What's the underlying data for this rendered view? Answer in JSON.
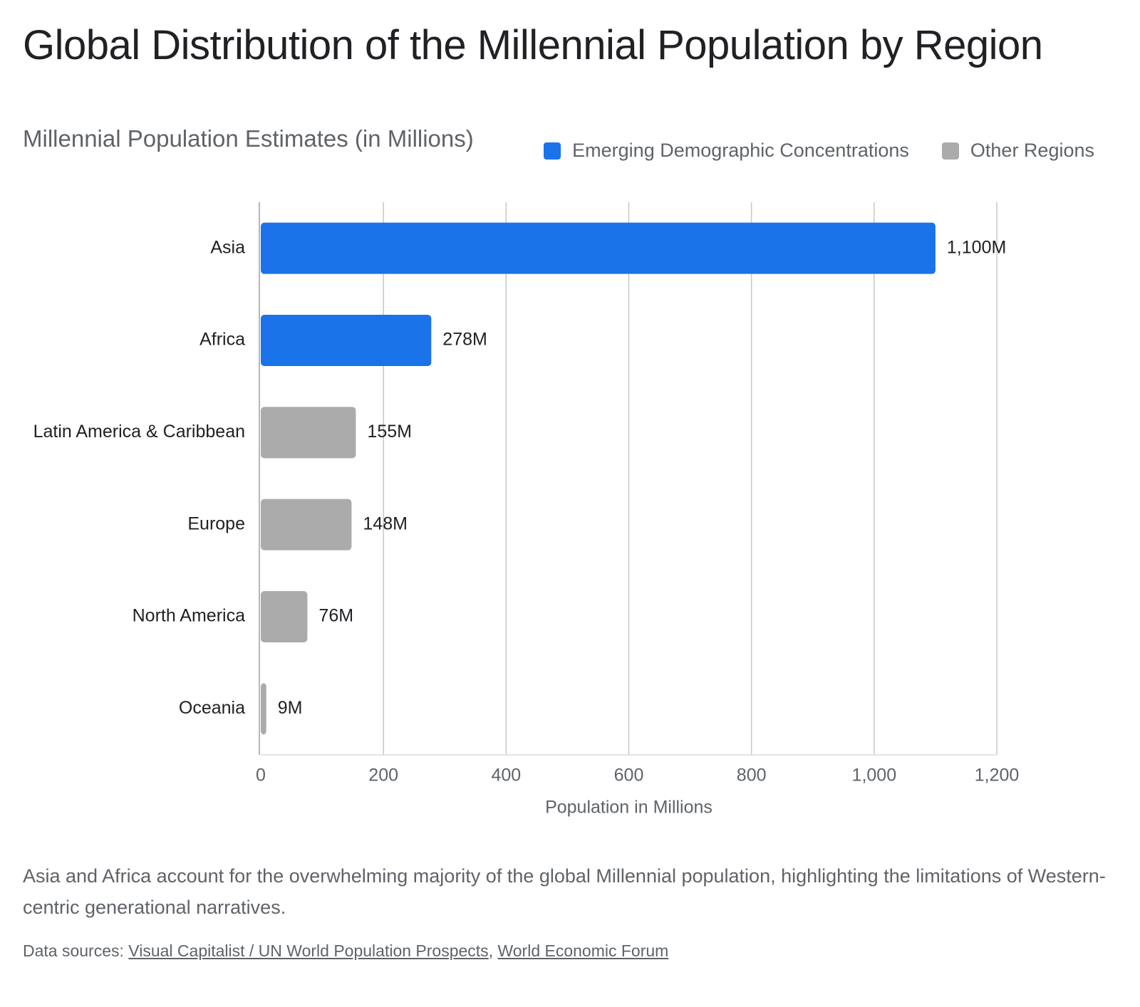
{
  "title": "Global Distribution of the Millennial Population by Region",
  "subtitle": "Millennial Population Estimates (in Millions)",
  "legend": [
    {
      "label": "Emerging Demographic Concentrations",
      "color": "#1a73e8"
    },
    {
      "label": "Other Regions",
      "color": "#ababab"
    }
  ],
  "chart_data": {
    "type": "bar",
    "orientation": "horizontal",
    "categories": [
      "Asia",
      "Africa",
      "Latin America & Caribbean",
      "Europe",
      "North America",
      "Oceania"
    ],
    "values": [
      1100,
      278,
      155,
      148,
      76,
      9
    ],
    "data_labels": [
      "1,100M",
      "278M",
      "155M",
      "148M",
      "76M",
      "9M"
    ],
    "groups": [
      "Emerging Demographic Concentrations",
      "Emerging Demographic Concentrations",
      "Other Regions",
      "Other Regions",
      "Other Regions",
      "Other Regions"
    ],
    "colors": [
      "#1a73e8",
      "#1a73e8",
      "#ababab",
      "#ababab",
      "#ababab",
      "#ababab"
    ],
    "xlabel": "Population in Millions",
    "ylabel": "",
    "xlim": [
      0,
      1200
    ],
    "xticks": [
      0,
      200,
      400,
      600,
      800,
      1000,
      1200
    ],
    "xtick_labels": [
      "0",
      "200",
      "400",
      "600",
      "800",
      "1,000",
      "1,200"
    ],
    "grid": "vertical",
    "legend_position": "top-right"
  },
  "description": "Asia and Africa account for the overwhelming majority of the global Millennial population, highlighting the limitations of Western-centric generational narratives.",
  "sources": {
    "prefix": "Data sources: ",
    "links": [
      "Visual Capitalist / UN World Population Prospects",
      "World Economic Forum"
    ],
    "separator": ", "
  }
}
